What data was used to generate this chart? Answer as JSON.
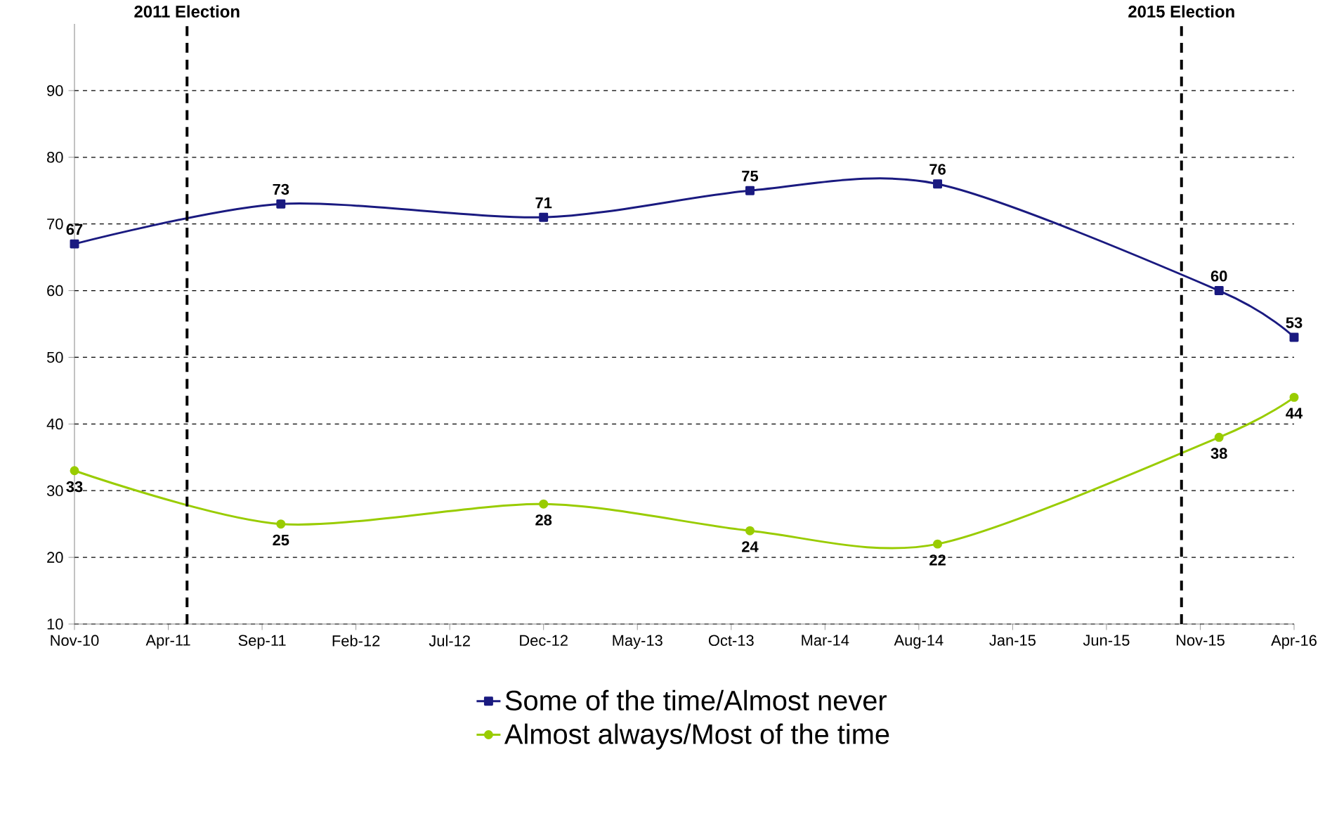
{
  "chart_data": {
    "type": "line",
    "x": [
      "2010-11",
      "2011-10",
      "2012-12",
      "2013-11",
      "2014-09",
      "2015-12",
      "2016-04"
    ],
    "series": [
      {
        "name": "Some of the time/Almost never",
        "color": "#1a1a80",
        "marker": "square",
        "values": [
          67,
          73,
          71,
          75,
          76,
          60,
          53
        ]
      },
      {
        "name": "Almost always/Most of the time",
        "color": "#99cc00",
        "marker": "circle",
        "values": [
          33,
          25,
          28,
          24,
          22,
          38,
          44
        ]
      }
    ],
    "xlim": [
      "2010-11",
      "2016-04"
    ],
    "xticks": [
      {
        "value": "2010-11",
        "label": "Nov-10"
      },
      {
        "value": "2011-04",
        "label": "Apr-11"
      },
      {
        "value": "2011-09",
        "label": "Sep-11"
      },
      {
        "value": "2012-02",
        "label": "Feb-12"
      },
      {
        "value": "2012-07",
        "label": "Jul-12"
      },
      {
        "value": "2012-12",
        "label": "Dec-12"
      },
      {
        "value": "2013-05",
        "label": "May-13"
      },
      {
        "value": "2013-10",
        "label": "Oct-13"
      },
      {
        "value": "2014-03",
        "label": "Mar-14"
      },
      {
        "value": "2014-08",
        "label": "Aug-14"
      },
      {
        "value": "2015-01",
        "label": "Jan-15"
      },
      {
        "value": "2015-06",
        "label": "Jun-15"
      },
      {
        "value": "2015-11",
        "label": "Nov-15"
      },
      {
        "value": "2016-04",
        "label": "Apr-16"
      }
    ],
    "ylim": [
      10,
      100
    ],
    "yticks": [
      10,
      20,
      30,
      40,
      50,
      60,
      70,
      80,
      90
    ],
    "grid": "y",
    "legend": "bottom",
    "data_labels": true,
    "line_style": "solid",
    "ref_lines": [
      {
        "axis": "x",
        "value": "2011-05",
        "label": "2011 Election",
        "line_style": "dashed",
        "color": "#000000"
      },
      {
        "axis": "x",
        "value": "2015-10",
        "label": "2015 Election",
        "line_style": "dashed",
        "color": "#000000"
      }
    ]
  }
}
